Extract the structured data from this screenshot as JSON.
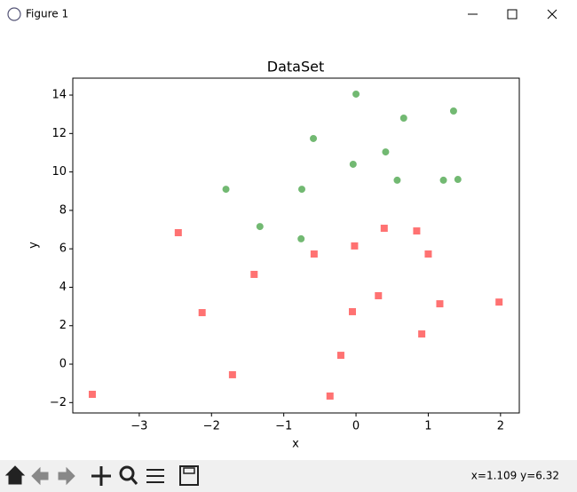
{
  "window": {
    "title": "Figure 1",
    "status": "x=1.109 y=6.32"
  },
  "chart_data": {
    "type": "scatter",
    "title": "DataSet",
    "x_label": "x",
    "y_label": "y",
    "xlim": [
      -3.92,
      2.26
    ],
    "ylim": [
      -2.54,
      14.88
    ],
    "xticks": [
      {
        "value": -3,
        "label": "−3"
      },
      {
        "value": -2,
        "label": "−2"
      },
      {
        "value": -1,
        "label": "−1"
      },
      0,
      1,
      2
    ],
    "yticks": [
      {
        "value": -2,
        "label": "−2"
      },
      0,
      2,
      4,
      6,
      8,
      10,
      12,
      14
    ],
    "series": [
      {
        "color": "green",
        "marker": "circle",
        "x": [
          0.0,
          1.35,
          0.66,
          -0.59,
          0.41,
          -0.04,
          0.57,
          1.21,
          1.41,
          -1.8,
          -0.75,
          -1.33,
          -0.76
        ],
        "y": [
          14.05,
          13.17,
          12.8,
          11.74,
          11.04,
          10.4,
          9.57,
          9.57,
          9.61,
          9.1,
          9.1,
          7.16,
          6.52
        ]
      },
      {
        "color": "red",
        "marker": "square",
        "x": [
          -3.65,
          -2.46,
          -2.13,
          -1.71,
          -1.41,
          -0.58,
          -0.36,
          -0.21,
          -0.05,
          -0.02,
          0.39,
          0.31,
          0.84,
          1.0,
          0.91,
          1.16,
          1.98
        ],
        "y": [
          -1.57,
          6.84,
          2.68,
          -0.55,
          4.67,
          5.73,
          -1.66,
          0.46,
          2.73,
          6.15,
          7.07,
          3.56,
          6.93,
          5.73,
          1.57,
          3.14,
          3.23
        ]
      }
    ]
  }
}
